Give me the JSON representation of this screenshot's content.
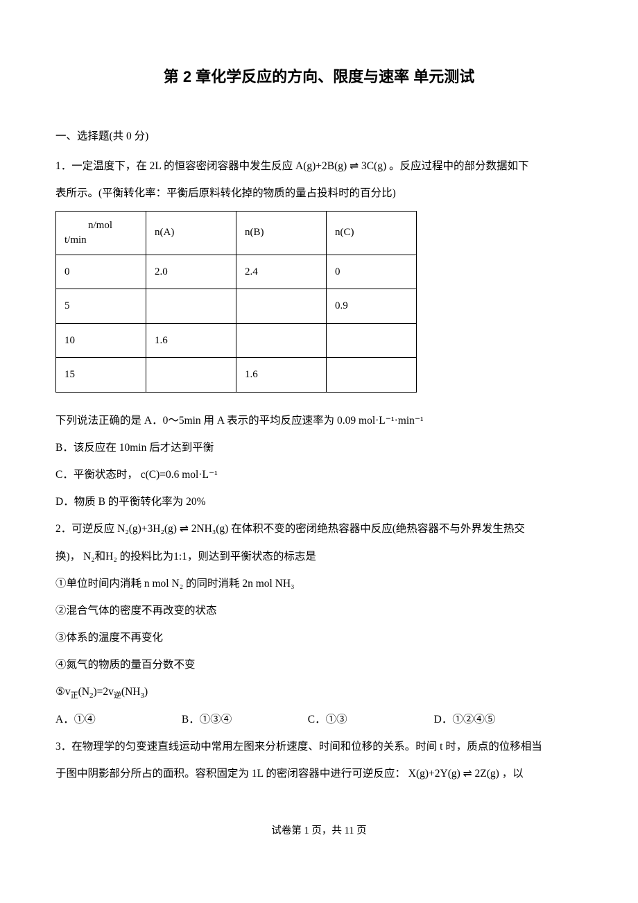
{
  "title": "第 2 章化学反应的方向、限度与速率  单元测试",
  "section1_heading": "一、选择题(共 0 分)",
  "q1": {
    "intro_a": "1．一定温度下，在 2L 的恒容密闭容器中发生反应",
    "intro_react": "A(g)+2B(g) ⇌ 3C(g)",
    "intro_b": "。反应过程中的部分数据如下",
    "intro_c": "表所示。(平衡转化率：平衡后原料转化掉的物质的量占投料时的百分比)",
    "table": {
      "hdr_top": "n/mol",
      "hdr_bot": "t/min",
      "colA": "n(A)",
      "colB": "n(B)",
      "colC": "n(C)",
      "rows": [
        {
          "t": "0",
          "a": "2.0",
          "b": "2.4",
          "c": "0"
        },
        {
          "t": "5",
          "a": "",
          "b": "",
          "c": "0.9"
        },
        {
          "t": "10",
          "a": "1.6",
          "b": "",
          "c": ""
        },
        {
          "t": "15",
          "a": "",
          "b": "1.6",
          "c": ""
        }
      ]
    },
    "opt_lead": "下列说法正确的是 A．0～5min 用 A 表示的平均反应速率为",
    "opt_a_val": "0.09 mol·L⁻¹·min⁻¹",
    "opt_b": "B．该反应在 10min 后才达到平衡",
    "opt_c_a": "C．平衡状态时，",
    "opt_c_b": "c(C)=0.6 mol·L⁻¹",
    "opt_d": "D．物质 B 的平衡转化率为 20%"
  },
  "q2": {
    "intro_a": "2．可逆反应",
    "react": "N₂(g)+3H₂(g) ⇌ 2NH₃(g)",
    "intro_b": "在体积不变的密闭绝热容器中反应(绝热容器不与外界发生热交",
    "intro_c": "换)，",
    "mix": "N₂和H₂",
    "intro_d": "的投料比为1:1，则达到平衡状态的标志是",
    "s1a": "①单位时间内消耗 n mol ",
    "s1n2": "N₂",
    "s1b": "的同时消耗 2n mol ",
    "s1nh3": "NH₃",
    "s2": "②混合气体的密度不再改变的状态",
    "s3": "③体系的温度不再变化",
    "s4": "④氮气的物质的量百分数不变",
    "s5": "⑤v₍正₎(N₂)=2v₍逆₎(NH₃)",
    "opts": {
      "a": "A．①④",
      "b": "B．①③④",
      "c": "C．①③",
      "d": "D．①②④⑤"
    }
  },
  "q3": {
    "line1": "3．在物理学的匀变速直线运动中常用左图来分析速度、时间和位移的关系。时间 t 时，质点的位移相当",
    "line2a": "于图中阴影部分所占的面积。容积固定为 1L 的密闭容器中进行可逆反应：",
    "react": "X(g)+2Y(g) ⇌ 2Z(g)",
    "line2b": "，以"
  },
  "footer": "试卷第 1 页，共 11 页"
}
